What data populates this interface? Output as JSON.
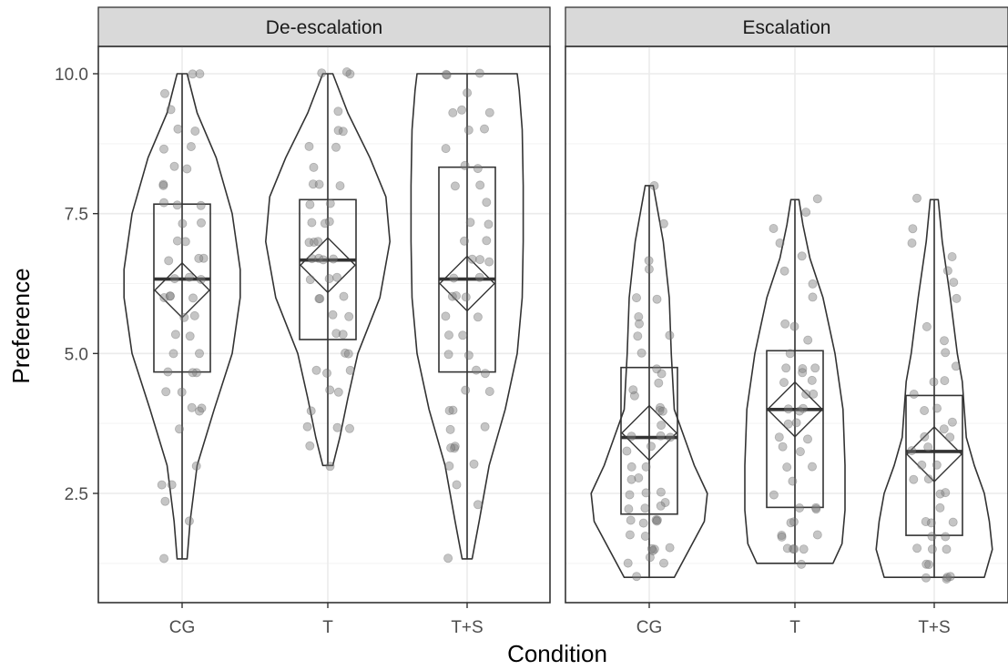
{
  "chart_data": {
    "type": "violin",
    "xlabel": "Condition",
    "ylabel": "Preference",
    "categories": [
      "CG",
      "T",
      "T+S"
    ],
    "yticks": [
      2.5,
      5.0,
      7.5,
      10.0
    ],
    "ytick_labels": [
      "2.5",
      "5.0",
      "7.5",
      "10.0"
    ],
    "ylim": [
      0.7,
      10.5
    ],
    "grid": true,
    "colors": {
      "outline": "#333333",
      "point": "#7f7f7f",
      "strip_fill": "#d9d9d9",
      "grid": "#ebebeb"
    },
    "panels": [
      {
        "name": "De-escalation",
        "groups": [
          {
            "category": "CG",
            "box": {
              "min": 1.33,
              "q1": 4.67,
              "median": 6.33,
              "q3": 7.67,
              "max": 10.0
            },
            "mean": 6.13,
            "violin": [
              [
                1.33,
                0.05
              ],
              [
                2,
                0.08
              ],
              [
                3,
                0.15
              ],
              [
                4,
                0.32
              ],
              [
                5,
                0.5
              ],
              [
                6,
                0.58
              ],
              [
                6.5,
                0.58
              ],
              [
                7.5,
                0.5
              ],
              [
                8.5,
                0.34
              ],
              [
                9.3,
                0.15
              ],
              [
                10,
                0.05
              ]
            ],
            "points": [
              10,
              10,
              9.67,
              9.33,
              9,
              9,
              8.67,
              8.67,
              8.33,
              8.33,
              8,
              8,
              7.67,
              7.67,
              7.67,
              7.33,
              7.33,
              7,
              7,
              6.67,
              6.67,
              6.67,
              6.33,
              6.33,
              6.33,
              6,
              6,
              6,
              6,
              5.67,
              5.67,
              5.33,
              5.33,
              5,
              5,
              4.67,
              4.67,
              4.67,
              4.33,
              4.33,
              4,
              4,
              4,
              3.67,
              3,
              2.67,
              2.67,
              2.33,
              2,
              1.33
            ]
          },
          {
            "category": "T",
            "box": {
              "min": 3.0,
              "q1": 5.25,
              "median": 6.67,
              "q3": 7.75,
              "max": 10.0
            },
            "mean": 6.58,
            "violin": [
              [
                3,
                0.05
              ],
              [
                3.5,
                0.12
              ],
              [
                4.2,
                0.2
              ],
              [
                5,
                0.3
              ],
              [
                6,
                0.52
              ],
              [
                7,
                0.62
              ],
              [
                7.8,
                0.58
              ],
              [
                8.5,
                0.42
              ],
              [
                9.3,
                0.2
              ],
              [
                10,
                0.05
              ]
            ],
            "points": [
              10,
              10,
              10,
              9.33,
              9,
              9,
              8.67,
              8.67,
              8.33,
              8,
              8,
              8,
              7.67,
              7.67,
              7.33,
              7.33,
              7.33,
              7,
              7,
              7,
              6.67,
              6.67,
              6.67,
              6.67,
              6.33,
              6.33,
              6.33,
              6,
              6,
              6,
              5.67,
              5.67,
              5.33,
              5.33,
              5,
              5,
              4.67,
              4.67,
              4.67,
              4.33,
              4.33,
              4,
              3.67,
              3.67,
              3.67,
              3.33,
              3
            ]
          },
          {
            "category": "T+S",
            "box": {
              "min": 1.33,
              "q1": 4.67,
              "median": 6.33,
              "q3": 8.33,
              "max": 10.0
            },
            "mean": 6.25,
            "violin": [
              [
                1.33,
                0.05
              ],
              [
                2,
                0.12
              ],
              [
                3,
                0.22
              ],
              [
                4,
                0.38
              ],
              [
                5,
                0.5
              ],
              [
                6,
                0.55
              ],
              [
                7,
                0.56
              ],
              [
                8,
                0.56
              ],
              [
                9,
                0.55
              ],
              [
                9.7,
                0.52
              ],
              [
                10,
                0.5
              ]
            ],
            "points": [
              10,
              10,
              10,
              9.67,
              9.33,
              9.33,
              9.33,
              9,
              9,
              8.67,
              8.33,
              8.33,
              8,
              8,
              7.67,
              7.33,
              7.33,
              7,
              7,
              6.67,
              6.67,
              6.67,
              6.33,
              6.33,
              6,
              6,
              6,
              5.67,
              5.67,
              5.33,
              5.33,
              5,
              5,
              4.67,
              4.67,
              4.33,
              4.33,
              4,
              4,
              3.67,
              3.67,
              3.33,
              3.33,
              3.33,
              3,
              3,
              2.67,
              2.33,
              1.33
            ]
          }
        ]
      },
      {
        "name": "Escalation",
        "groups": [
          {
            "category": "CG",
            "box": {
              "min": 1.0,
              "q1": 2.13,
              "median": 3.5,
              "q3": 4.75,
              "max": 8.0
            },
            "mean": 3.58,
            "violin": [
              [
                1,
                0.25
              ],
              [
                1.5,
                0.4
              ],
              [
                2,
                0.55
              ],
              [
                2.5,
                0.58
              ],
              [
                3,
                0.45
              ],
              [
                3.5,
                0.35
              ],
              [
                4,
                0.25
              ],
              [
                5,
                0.22
              ],
              [
                6,
                0.2
              ],
              [
                7,
                0.14
              ],
              [
                7.6,
                0.08
              ],
              [
                8,
                0.04
              ]
            ],
            "points": [
              8,
              7.33,
              6.67,
              6.5,
              6,
              6,
              5.67,
              5.5,
              5.33,
              5.33,
              5,
              4.75,
              4.67,
              4.5,
              4.33,
              4.25,
              4,
              4,
              4,
              3.75,
              3.5,
              3.5,
              3.5,
              3.33,
              3.25,
              3,
              3,
              2.75,
              2.75,
              2.5,
              2.5,
              2.5,
              2.33,
              2.25,
              2.25,
              2.25,
              2,
              2,
              2,
              2,
              2,
              1.75,
              1.75,
              1.5,
              1.5,
              1.5,
              1.5,
              1.33,
              1.25,
              1.25,
              1
            ]
          },
          {
            "category": "T",
            "box": {
              "min": 1.25,
              "q1": 2.25,
              "median": 4.0,
              "q3": 5.05,
              "max": 7.75
            },
            "mean": 4.0,
            "violin": [
              [
                1.25,
                0.38
              ],
              [
                1.6,
                0.47
              ],
              [
                2.2,
                0.5
              ],
              [
                3,
                0.5
              ],
              [
                4,
                0.48
              ],
              [
                5,
                0.4
              ],
              [
                5.5,
                0.34
              ],
              [
                6,
                0.28
              ],
              [
                6.7,
                0.15
              ],
              [
                7.3,
                0.08
              ],
              [
                7.75,
                0.04
              ]
            ],
            "points": [
              7.75,
              7.5,
              7.25,
              7,
              6.75,
              6.5,
              6.25,
              6,
              5.5,
              5.5,
              5.25,
              5,
              4.75,
              4.75,
              4.75,
              4.67,
              4.5,
              4.5,
              4.25,
              4.25,
              4,
              4,
              4,
              3.75,
              3.75,
              3.5,
              3.5,
              3.33,
              3.25,
              3,
              3,
              2.75,
              2.5,
              2.25,
              2.25,
              2.25,
              2,
              2,
              1.75,
              1.75,
              1.75,
              1.5,
              1.5,
              1.5,
              1.5,
              1.25
            ]
          },
          {
            "category": "T+S",
            "box": {
              "min": 1.0,
              "q1": 1.75,
              "median": 3.25,
              "q3": 4.25,
              "max": 7.75
            },
            "mean": 3.2,
            "violin": [
              [
                1,
                0.5
              ],
              [
                1.5,
                0.58
              ],
              [
                2,
                0.55
              ],
              [
                2.5,
                0.5
              ],
              [
                3,
                0.4
              ],
              [
                3.5,
                0.32
              ],
              [
                4,
                0.3
              ],
              [
                4.5,
                0.28
              ],
              [
                5,
                0.23
              ],
              [
                6,
                0.16
              ],
              [
                7,
                0.08
              ],
              [
                7.75,
                0.04
              ]
            ],
            "points": [
              7.75,
              7.25,
              7,
              6.75,
              6.5,
              6.25,
              6,
              5.5,
              5.25,
              5,
              4.75,
              4.5,
              4.5,
              4.25,
              4,
              4,
              3.75,
              3.67,
              3.5,
              3.5,
              3.33,
              3.25,
              3,
              3,
              2.75,
              2.75,
              2.5,
              2.5,
              2.25,
              2,
              2,
              2,
              1.75,
              1.75,
              1.5,
              1.5,
              1.5,
              1.25,
              1.25,
              1,
              1,
              1,
              1
            ]
          }
        ]
      }
    ]
  }
}
